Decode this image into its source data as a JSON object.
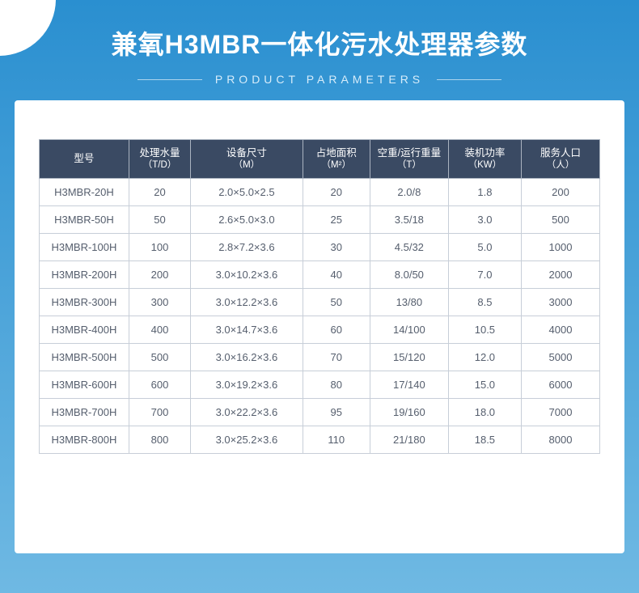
{
  "header": {
    "title_cn": "兼氧H3MBR一体化污水处理器参数",
    "title_en": "PRODUCT PARAMETERS"
  },
  "table": {
    "header_bg": "#3a4a63",
    "header_text_color": "#ffffff",
    "border_color": "#c7ced8",
    "cell_text_color": "#555e6d",
    "columns": [
      {
        "label": "型号",
        "unit": ""
      },
      {
        "label": "处理水量",
        "unit": "（T/D）"
      },
      {
        "label": "设备尺寸",
        "unit": "（M）"
      },
      {
        "label": "占地面积",
        "unit": "（M²）"
      },
      {
        "label": "空重/运行重量",
        "unit": "（T）"
      },
      {
        "label": "装机功率",
        "unit": "（KW）"
      },
      {
        "label": "服务人口",
        "unit": "（人）"
      }
    ],
    "col_widths": [
      "16%",
      "11%",
      "20%",
      "12%",
      "14%",
      "13%",
      "14%"
    ],
    "rows": [
      [
        "H3MBR-20H",
        "20",
        "2.0×5.0×2.5",
        "20",
        "2.0/8",
        "1.8",
        "200"
      ],
      [
        "H3MBR-50H",
        "50",
        "2.6×5.0×3.0",
        "25",
        "3.5/18",
        "3.0",
        "500"
      ],
      [
        "H3MBR-100H",
        "100",
        "2.8×7.2×3.6",
        "30",
        "4.5/32",
        "5.0",
        "1000"
      ],
      [
        "H3MBR-200H",
        "200",
        "3.0×10.2×3.6",
        "40",
        "8.0/50",
        "7.0",
        "2000"
      ],
      [
        "H3MBR-300H",
        "300",
        "3.0×12.2×3.6",
        "50",
        "13/80",
        "8.5",
        "3000"
      ],
      [
        "H3MBR-400H",
        "400",
        "3.0×14.7×3.6",
        "60",
        "14/100",
        "10.5",
        "4000"
      ],
      [
        "H3MBR-500H",
        "500",
        "3.0×16.2×3.6",
        "70",
        "15/120",
        "12.0",
        "5000"
      ],
      [
        "H3MBR-600H",
        "600",
        "3.0×19.2×3.6",
        "80",
        "17/140",
        "15.0",
        "6000"
      ],
      [
        "H3MBR-700H",
        "700",
        "3.0×22.2×3.6",
        "95",
        "19/160",
        "18.0",
        "7000"
      ],
      [
        "H3MBR-800H",
        "800",
        "3.0×25.2×3.6",
        "110",
        "21/180",
        "18.5",
        "8000"
      ]
    ]
  },
  "colors": {
    "bg_gradient_top": "#2a8fd0",
    "bg_gradient_bottom": "#6fb9e3",
    "card_bg": "#ffffff",
    "title_color": "#ffffff",
    "subtitle_color": "#d6ecfa"
  }
}
